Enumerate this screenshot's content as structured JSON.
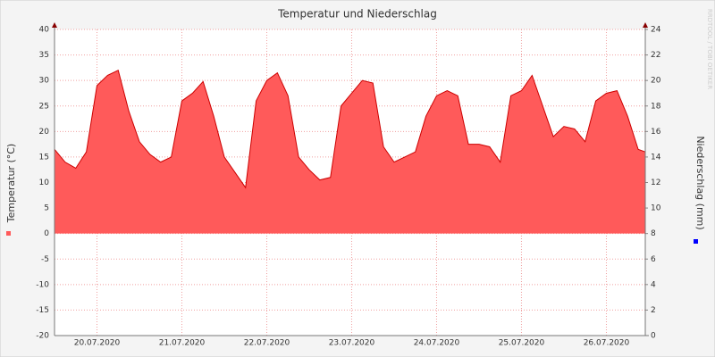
{
  "chart_data": {
    "type": "area",
    "title": "Temperatur und Niederschlag",
    "watermark": "RRDTOOL / TOBI OETIKER",
    "ylabel": "Temperatur (°C)",
    "y2label": "Niederschlag (mm)",
    "x": [
      0,
      3,
      6,
      9,
      12,
      15,
      18,
      21,
      24,
      27,
      30,
      33,
      36,
      39,
      42,
      45,
      48,
      51,
      54,
      57,
      60,
      63,
      66,
      69,
      72,
      75,
      78,
      81,
      84,
      87,
      90,
      93,
      96,
      99,
      102,
      105,
      108,
      111,
      114,
      117,
      120,
      123,
      126,
      129,
      132,
      135,
      138,
      141,
      144,
      147,
      150,
      153,
      156,
      159,
      162,
      165,
      167
    ],
    "series": [
      {
        "color": "#ff5a5a",
        "line_color": "#cc0000",
        "values": [
          16.5,
          14,
          12.8,
          16,
          29,
          31,
          32,
          24,
          18,
          15.5,
          14,
          15,
          26,
          27.5,
          29.8,
          23,
          15,
          12,
          9,
          26,
          30,
          31.5,
          27,
          15,
          12.5,
          10.5,
          11,
          25,
          27.5,
          30,
          29.5,
          17,
          14,
          15,
          16,
          23,
          27,
          28,
          27,
          17.5,
          17.5,
          17,
          14,
          27,
          28,
          31,
          25,
          19,
          21,
          20.5,
          18,
          26,
          27.5,
          28,
          23,
          16.5,
          16
        ]
      }
    ],
    "y2_color": "#0000ff",
    "xlim": [
      0,
      167
    ],
    "xticks": [
      {
        "value": 12,
        "label": "20.07.2020"
      },
      {
        "value": 36,
        "label": "21.07.2020"
      },
      {
        "value": 60,
        "label": "22.07.2020"
      },
      {
        "value": 84,
        "label": "23.07.2020"
      },
      {
        "value": 108,
        "label": "24.07.2020"
      },
      {
        "value": 132,
        "label": "25.07.2020"
      },
      {
        "value": 156,
        "label": "26.07.2020"
      }
    ],
    "ylim": [
      -20,
      40
    ],
    "yticks": [
      -20,
      -15,
      -10,
      -5,
      0,
      5,
      10,
      15,
      20,
      25,
      30,
      35,
      40
    ],
    "y2lim": [
      0,
      24
    ],
    "y2ticks": [
      0,
      2,
      4,
      6,
      8,
      10,
      12,
      14,
      16,
      18,
      20,
      22,
      24
    ],
    "grid": true
  }
}
